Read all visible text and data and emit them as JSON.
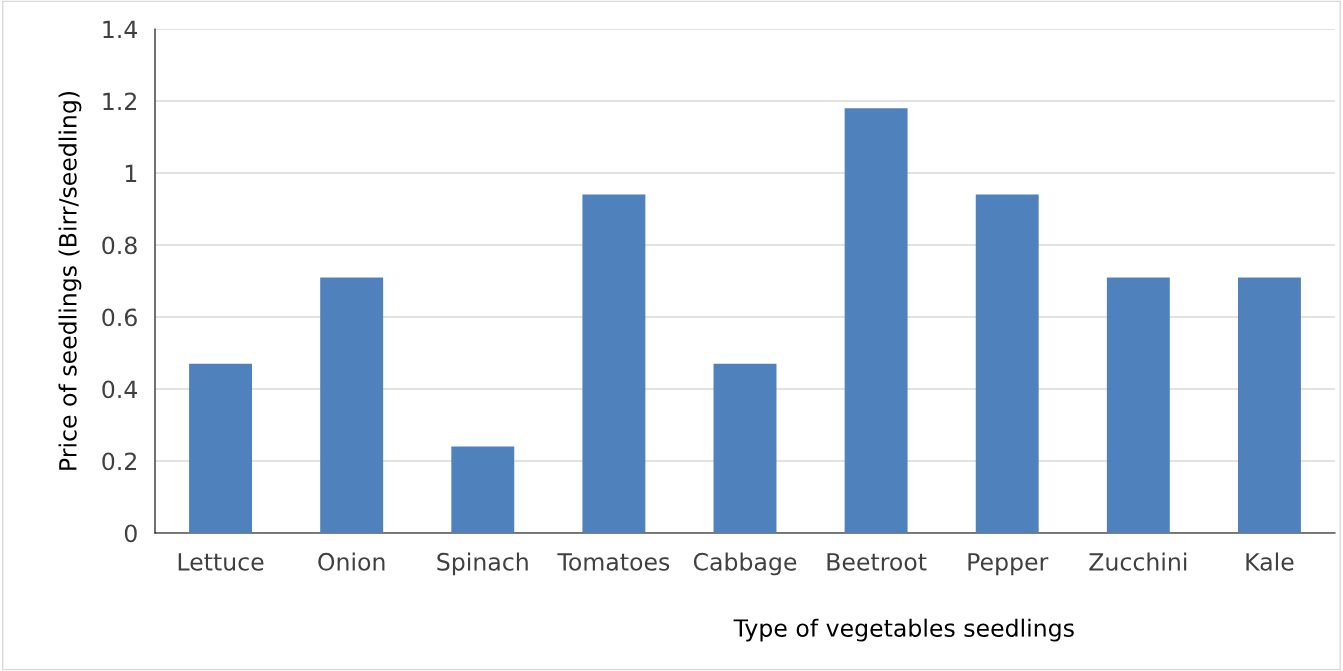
{
  "chart_data": {
    "type": "bar",
    "categories": [
      "Lettuce",
      "Onion",
      "Spinach",
      "Tomatoes",
      "Cabbage",
      "Beetroot",
      "Pepper",
      "Zucchini",
      "Kale"
    ],
    "values": [
      0.47,
      0.71,
      0.24,
      0.94,
      0.47,
      1.18,
      0.94,
      0.71,
      0.71
    ],
    "color": "#4f81bd",
    "xlabel": "Type of vegetables seedlings",
    "ylabel": "Price of seedlings (Birr/seedling)",
    "ylim": [
      0,
      1.4
    ],
    "yticks": [
      {
        "value": 0,
        "label": "0"
      },
      0.2,
      0.4,
      0.6,
      0.8,
      1,
      1.2,
      1.4
    ],
    "grid": "y",
    "legend": false
  }
}
